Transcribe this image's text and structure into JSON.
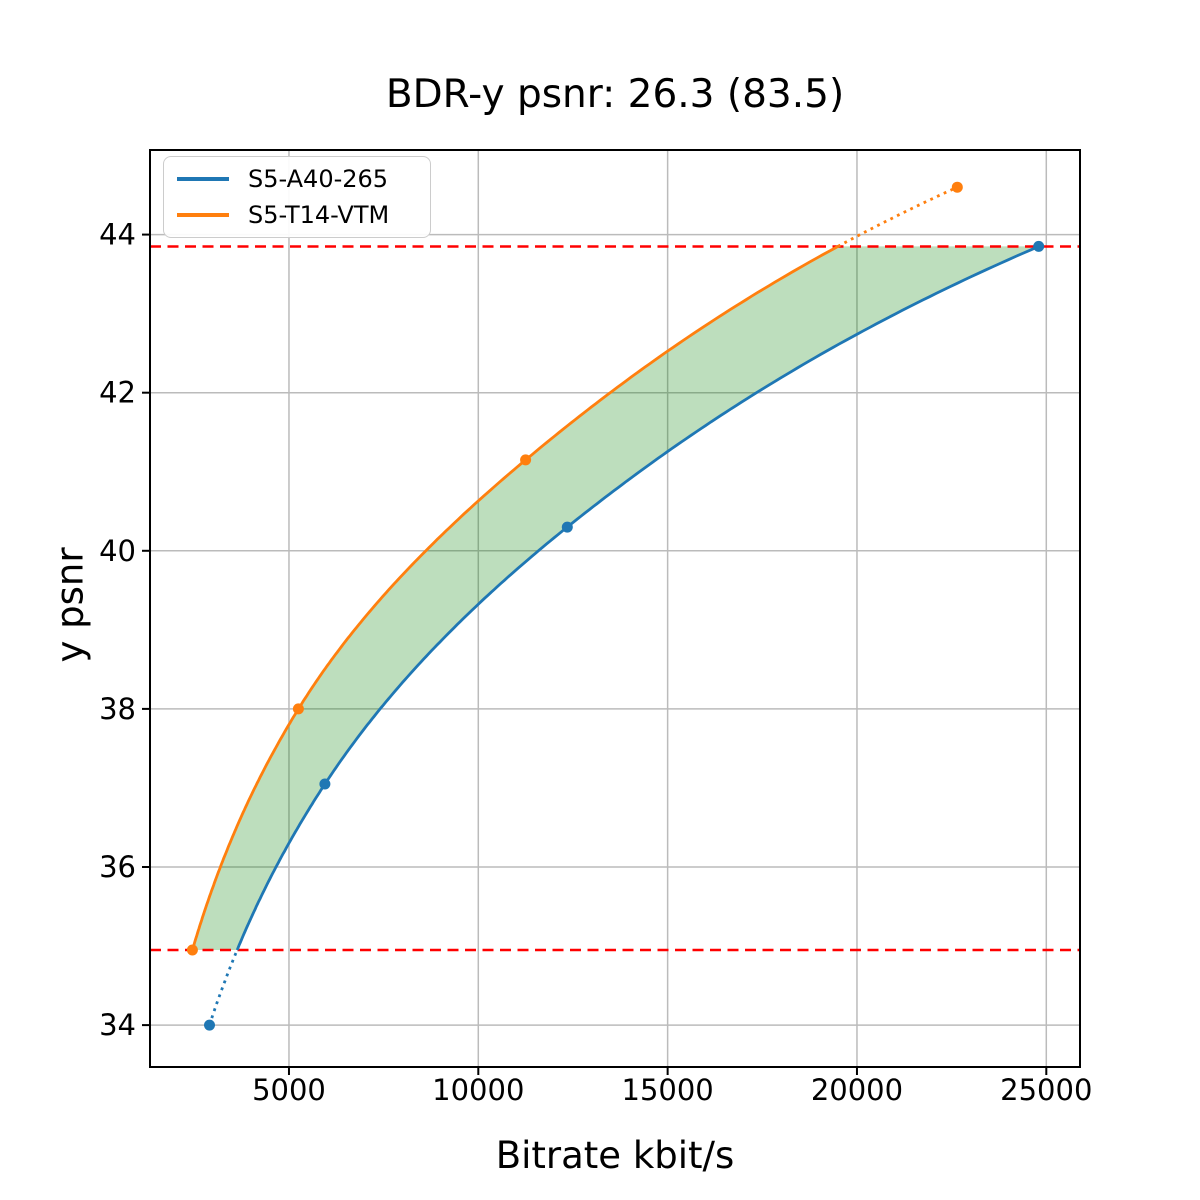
{
  "title": "BDR-y psnr: 26.3 (83.5)",
  "chart_data": {
    "type": "line",
    "title": "BDR-y psnr: 26.3 (83.5)",
    "xlabel": "Bitrate kbit/s",
    "ylabel": "y psnr",
    "xlim": [
      1330,
      25890
    ],
    "ylim": [
      33.47,
      45.07
    ],
    "xticks": [
      5000,
      10000,
      15000,
      20000,
      25000
    ],
    "yticks": [
      34,
      36,
      38,
      40,
      42,
      44
    ],
    "grid": true,
    "grid_color": "#bbbbbb",
    "legend_position": "upper left",
    "series": [
      {
        "name": "S5-A40-265",
        "color": "#1f77b4",
        "points": [
          [
            2900,
            34.0
          ],
          [
            5950,
            37.05
          ],
          [
            12350,
            40.3
          ],
          [
            24800,
            43.85
          ]
        ]
      },
      {
        "name": "S5-T14-VTM",
        "color": "#ff7f0e",
        "points": [
          [
            2450,
            34.95
          ],
          [
            5250,
            38.0
          ],
          [
            11250,
            41.15
          ],
          [
            22650,
            44.6
          ]
        ]
      }
    ],
    "overlap_lines": {
      "color": "#ff0000",
      "style": "dashed",
      "lower": 34.95,
      "upper": 43.85
    },
    "fill_between": {
      "color": "#008000",
      "alpha": 0.26
    }
  }
}
